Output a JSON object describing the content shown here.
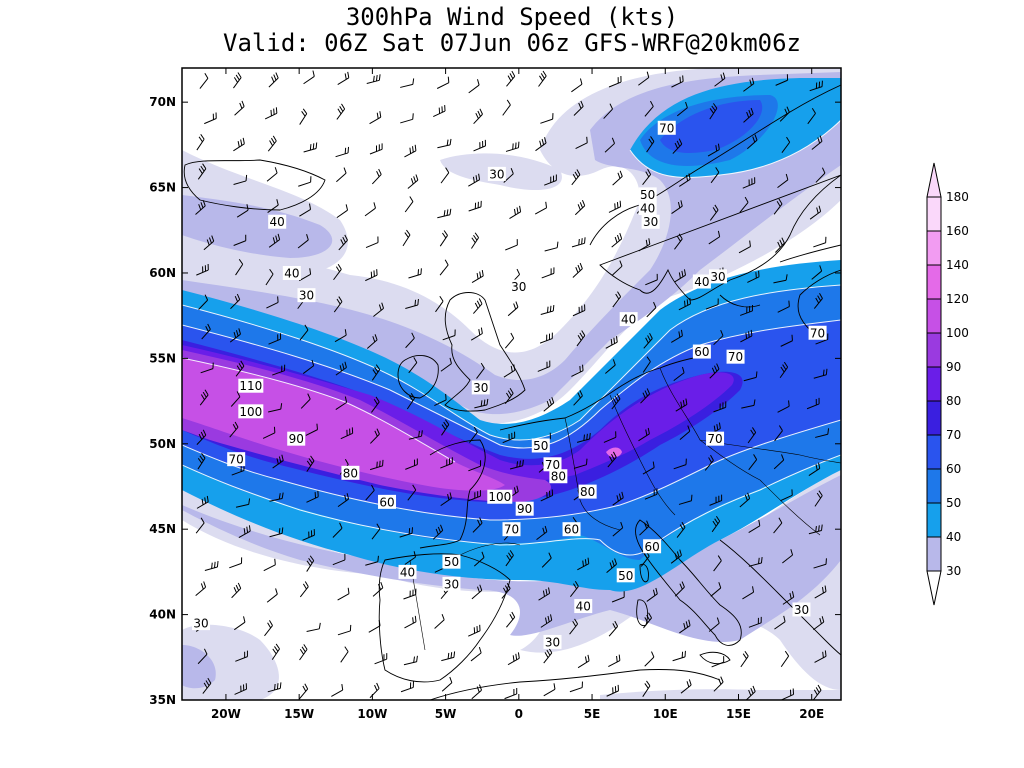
{
  "title": {
    "line1": "300hPa Wind Speed (kts)",
    "line2": "Valid: 06Z Sat 07Jun 06z GFS-WRF@20km06z"
  },
  "map": {
    "lon_range": [
      -23,
      22
    ],
    "lat_range": [
      35,
      72
    ],
    "lon_ticks": [
      {
        "lon": -20,
        "label": "20W"
      },
      {
        "lon": -15,
        "label": "15W"
      },
      {
        "lon": -10,
        "label": "10W"
      },
      {
        "lon": -5,
        "label": "5W"
      },
      {
        "lon": 0,
        "label": "0"
      },
      {
        "lon": 5,
        "label": "5E"
      },
      {
        "lon": 10,
        "label": "10E"
      },
      {
        "lon": 15,
        "label": "15E"
      },
      {
        "lon": 20,
        "label": "20E"
      }
    ],
    "lat_ticks": [
      {
        "lat": 70,
        "label": "70N"
      },
      {
        "lat": 65,
        "label": "65N"
      },
      {
        "lat": 60,
        "label": "60N"
      },
      {
        "lat": 55,
        "label": "55N"
      },
      {
        "lat": 50,
        "label": "50N"
      },
      {
        "lat": 45,
        "label": "45N"
      },
      {
        "lat": 40,
        "label": "40N"
      },
      {
        "lat": 35,
        "label": "35N"
      }
    ],
    "contour_labels": [
      {
        "lon": 10.1,
        "lat": 68.5,
        "text": "70"
      },
      {
        "lon": 8.8,
        "lat": 64.6,
        "text": "50"
      },
      {
        "lon": 8.8,
        "lat": 63.8,
        "text": "40"
      },
      {
        "lon": 9,
        "lat": 63,
        "text": "30"
      },
      {
        "lon": -1.5,
        "lat": 65.8,
        "text": "30"
      },
      {
        "lon": -16.5,
        "lat": 63,
        "text": "40"
      },
      {
        "lon": -15.5,
        "lat": 60,
        "text": "40"
      },
      {
        "lon": -14.5,
        "lat": 58.7,
        "text": "30"
      },
      {
        "lon": 0,
        "lat": 59.2,
        "text": "30"
      },
      {
        "lon": 12.5,
        "lat": 59.5,
        "text": "40"
      },
      {
        "lon": 13.6,
        "lat": 59.8,
        "text": "30"
      },
      {
        "lon": 7.5,
        "lat": 57.3,
        "text": "40"
      },
      {
        "lon": 20.4,
        "lat": 56.5,
        "text": "70"
      },
      {
        "lon": 12.5,
        "lat": 55.4,
        "text": "60"
      },
      {
        "lon": 14.8,
        "lat": 55.1,
        "text": "70"
      },
      {
        "lon": -18.3,
        "lat": 53.4,
        "text": "110"
      },
      {
        "lon": -18.3,
        "lat": 51.9,
        "text": "100"
      },
      {
        "lon": -15.2,
        "lat": 50.3,
        "text": "90"
      },
      {
        "lon": -19.3,
        "lat": 49.1,
        "text": "70"
      },
      {
        "lon": -11.5,
        "lat": 48.3,
        "text": "80"
      },
      {
        "lon": -2.6,
        "lat": 53.3,
        "text": "30"
      },
      {
        "lon": 1.5,
        "lat": 49.9,
        "text": "50"
      },
      {
        "lon": 2.3,
        "lat": 48.8,
        "text": "70"
      },
      {
        "lon": 2.7,
        "lat": 48.1,
        "text": "80"
      },
      {
        "lon": 4.7,
        "lat": 47.2,
        "text": "80"
      },
      {
        "lon": -1.3,
        "lat": 46.9,
        "text": "100"
      },
      {
        "lon": 0.4,
        "lat": 46.2,
        "text": "90"
      },
      {
        "lon": -9,
        "lat": 46.6,
        "text": "60"
      },
      {
        "lon": -0.5,
        "lat": 45,
        "text": "70"
      },
      {
        "lon": 3.6,
        "lat": 45,
        "text": "60"
      },
      {
        "lon": 13.4,
        "lat": 50.3,
        "text": "70"
      },
      {
        "lon": 9.1,
        "lat": 44,
        "text": "60"
      },
      {
        "lon": 7.3,
        "lat": 42.3,
        "text": "50"
      },
      {
        "lon": -4.6,
        "lat": 43.1,
        "text": "50"
      },
      {
        "lon": -7.6,
        "lat": 42.5,
        "text": "40"
      },
      {
        "lon": -4.6,
        "lat": 41.8,
        "text": "30"
      },
      {
        "lon": 4.4,
        "lat": 40.5,
        "text": "40"
      },
      {
        "lon": 2.3,
        "lat": 38.4,
        "text": "30"
      },
      {
        "lon": 19.3,
        "lat": 40.3,
        "text": "30"
      },
      {
        "lon": -21.7,
        "lat": 39.5,
        "text": "30"
      }
    ]
  },
  "legend": {
    "levels": [
      "30",
      "40",
      "50",
      "60",
      "70",
      "80",
      "90",
      "100",
      "120",
      "140",
      "160",
      "180"
    ],
    "colors": {
      "c30": "#dcdcf0",
      "c40": "#b8b8ea",
      "c50": "#16a0ec",
      "c60": "#1e78ea",
      "c70": "#2a54ee",
      "c80": "#3a1fe0",
      "c90": "#6a1ee8",
      "c100": "#9a3ae0",
      "c120": "#c650e6",
      "c140": "#e46ae8",
      "c160": "#f29cf2",
      "c180": "#fad8fa"
    }
  }
}
